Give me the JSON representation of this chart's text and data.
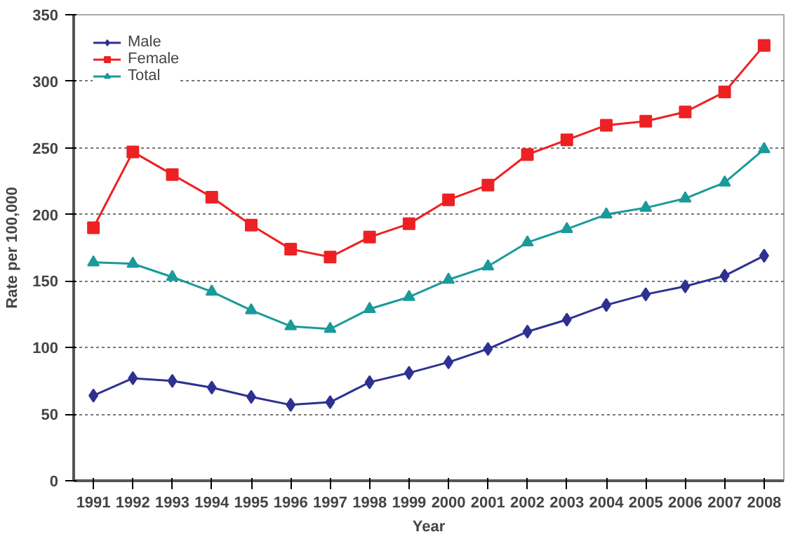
{
  "chart_data": {
    "type": "line",
    "xlabel": "Year",
    "ylabel": "Rate per 100,000",
    "categories": [
      "1991",
      "1992",
      "1993",
      "1994",
      "1995",
      "1996",
      "1997",
      "1998",
      "1999",
      "2000",
      "2001",
      "2002",
      "2003",
      "2004",
      "2005",
      "2006",
      "2007",
      "2008"
    ],
    "series": [
      {
        "name": "Male",
        "color": "#2e3192",
        "marker": "diamond",
        "values": [
          64,
          77,
          75,
          70,
          63,
          57,
          59,
          74,
          81,
          89,
          99,
          112,
          121,
          132,
          140,
          146,
          154,
          169
        ]
      },
      {
        "name": "Female",
        "color": "#ed2124",
        "marker": "square",
        "values": [
          190,
          247,
          230,
          213,
          192,
          174,
          168,
          183,
          193,
          211,
          222,
          245,
          256,
          267,
          270,
          277,
          292,
          327
        ]
      },
      {
        "name": "Total",
        "color": "#1a9a9a",
        "marker": "triangle",
        "values": [
          164,
          163,
          153,
          142,
          128,
          116,
          114,
          129,
          138,
          151,
          161,
          179,
          189,
          200,
          205,
          212,
          224,
          249
        ]
      }
    ],
    "ylim": [
      0,
      350
    ],
    "yticks": [
      0,
      50,
      100,
      150,
      200,
      250,
      300,
      350
    ],
    "grid": "y",
    "legend": "top left",
    "line_style": "solid"
  }
}
